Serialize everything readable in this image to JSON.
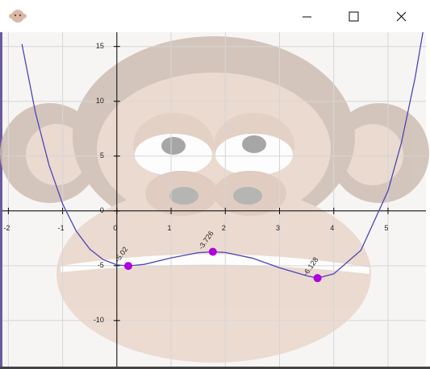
{
  "chart_data": {
    "type": "line",
    "x": [
      -1.75,
      -1.5,
      -1.25,
      -1,
      -0.75,
      -0.5,
      -0.25,
      0,
      0.21,
      0.5,
      1,
      1.5,
      1.77,
      2,
      2.5,
      3,
      3.5,
      3.7,
      4,
      4.5,
      5,
      5.25,
      5.5,
      5.65
    ],
    "series": [
      {
        "color": "#4a46b8",
        "values": [
          15.22,
          8.95,
          4.17,
          0.64,
          -1.84,
          -3.48,
          -4.45,
          -4.92,
          -5.02,
          -4.88,
          -4.29,
          -3.81,
          -3.726,
          -3.79,
          -4.31,
          -5.19,
          -5.91,
          -6.128,
          -5.74,
          -3.6,
          1.83,
          6.27,
          12.16,
          16.49
        ]
      }
    ],
    "points": {
      "color": "#b000e0",
      "x": [
        0.21,
        1.77,
        3.7
      ],
      "values": [
        -5.02,
        -3.726,
        -6.128
      ]
    },
    "xlim": [
      -2.11,
      5.7
    ],
    "ylim": [
      -14.2,
      16.3
    ],
    "xticks": [
      -2,
      -1,
      0,
      1,
      2,
      3,
      4,
      5
    ],
    "yticks": [
      -10,
      -5,
      0,
      5,
      10,
      15
    ],
    "grid": true
  }
}
